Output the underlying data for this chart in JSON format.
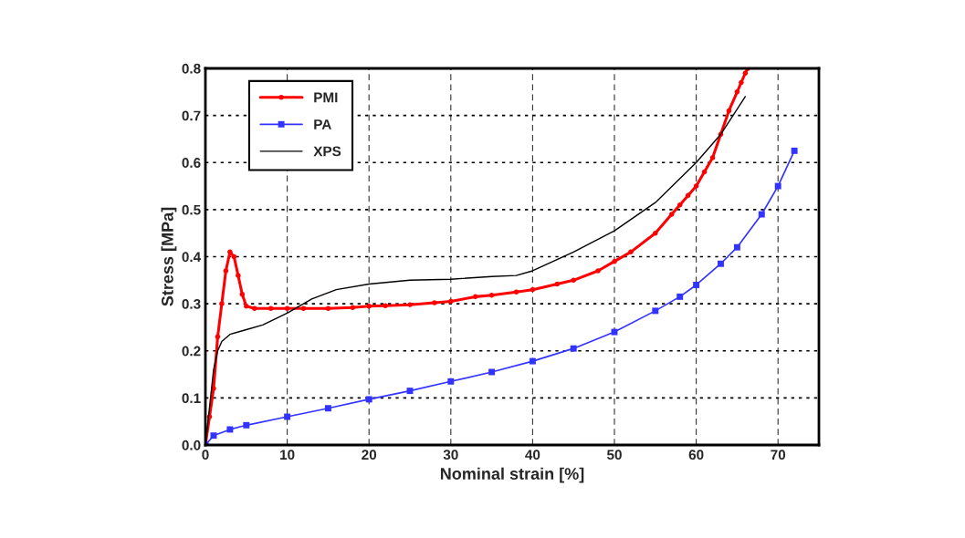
{
  "chart_data": {
    "type": "line",
    "xlabel": "Nominal strain [%]",
    "ylabel": "Stress [MPa]",
    "xlim": [
      0,
      75
    ],
    "xticks": [
      0,
      10,
      20,
      30,
      40,
      50,
      60,
      70
    ],
    "ylim": [
      0,
      0.8
    ],
    "yticks": [
      {
        "value": 0,
        "label": "0.0"
      },
      0.1,
      0.2,
      0.3,
      0.4,
      0.5,
      0.6,
      0.7,
      0.8
    ],
    "grid": true,
    "legend": "top left",
    "series": [
      {
        "name": "PMI",
        "color": "#ff0000",
        "marker": "circle",
        "x": [
          0,
          0.5,
          1,
          1.5,
          2,
          2.5,
          3,
          3.5,
          4,
          4.5,
          5,
          6,
          8,
          10,
          12,
          15,
          18,
          20,
          22,
          25,
          28,
          30,
          33,
          35,
          38,
          40,
          43,
          45,
          48,
          50,
          52,
          55,
          57,
          58,
          59,
          60,
          61,
          62,
          63,
          64,
          65,
          65.5,
          66,
          66.3
        ],
        "values": [
          0,
          0.06,
          0.12,
          0.23,
          0.3,
          0.37,
          0.41,
          0.4,
          0.36,
          0.32,
          0.295,
          0.29,
          0.29,
          0.29,
          0.29,
          0.29,
          0.292,
          0.295,
          0.296,
          0.298,
          0.302,
          0.305,
          0.315,
          0.318,
          0.325,
          0.33,
          0.342,
          0.35,
          0.37,
          0.39,
          0.41,
          0.45,
          0.49,
          0.51,
          0.53,
          0.55,
          0.58,
          0.61,
          0.66,
          0.71,
          0.75,
          0.77,
          0.79,
          0.8
        ]
      },
      {
        "name": "PA",
        "color": "#3333ff",
        "marker": "square",
        "x": [
          0,
          1,
          3,
          5,
          10,
          15,
          20,
          25,
          30,
          35,
          40,
          45,
          50,
          55,
          58,
          60,
          63,
          65,
          68,
          70,
          72
        ],
        "values": [
          0,
          0.02,
          0.033,
          0.042,
          0.06,
          0.078,
          0.097,
          0.115,
          0.135,
          0.155,
          0.178,
          0.205,
          0.24,
          0.285,
          0.315,
          0.34,
          0.385,
          0.42,
          0.49,
          0.55,
          0.625
        ]
      },
      {
        "name": "XPS",
        "color": "#000000",
        "marker": "none",
        "x": [
          0,
          0.5,
          1,
          1.5,
          2,
          3,
          5,
          7,
          10,
          13,
          16,
          20,
          25,
          30,
          35,
          38,
          40,
          45,
          50,
          55,
          60,
          63,
          66
        ],
        "values": [
          0,
          0.08,
          0.16,
          0.2,
          0.22,
          0.235,
          0.245,
          0.255,
          0.28,
          0.31,
          0.33,
          0.342,
          0.35,
          0.352,
          0.358,
          0.36,
          0.37,
          0.41,
          0.455,
          0.515,
          0.6,
          0.66,
          0.74
        ]
      }
    ]
  }
}
